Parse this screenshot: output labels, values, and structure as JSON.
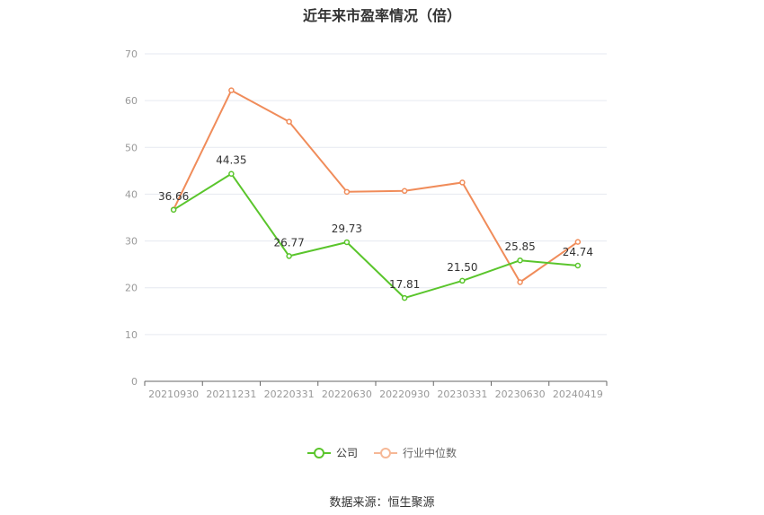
{
  "chart_data": {
    "type": "line",
    "title": "近年来市盈率情况（倍）",
    "categories": [
      "20210930",
      "20211231",
      "20220331",
      "20220630",
      "20220930",
      "20230331",
      "20230630",
      "20240419"
    ],
    "ylim": [
      0,
      70
    ],
    "yticks": [
      0,
      10,
      20,
      30,
      40,
      50,
      60,
      70
    ],
    "grid": true,
    "legend_position": "bottom",
    "series": [
      {
        "name": "公司",
        "color": "#5ac52c",
        "values": [
          36.66,
          44.35,
          26.77,
          29.73,
          17.81,
          21.5,
          25.85,
          24.74
        ],
        "labels": [
          "36.66",
          "44.35",
          "26.77",
          "29.73",
          "17.81",
          "21.50",
          "25.85",
          "24.74"
        ]
      },
      {
        "name": "行业中位数",
        "color": "#f08c5a",
        "values": [
          36.7,
          62.2,
          55.5,
          40.5,
          40.7,
          42.5,
          21.2,
          29.8
        ]
      }
    ]
  },
  "source": "数据来源：恒生聚源"
}
